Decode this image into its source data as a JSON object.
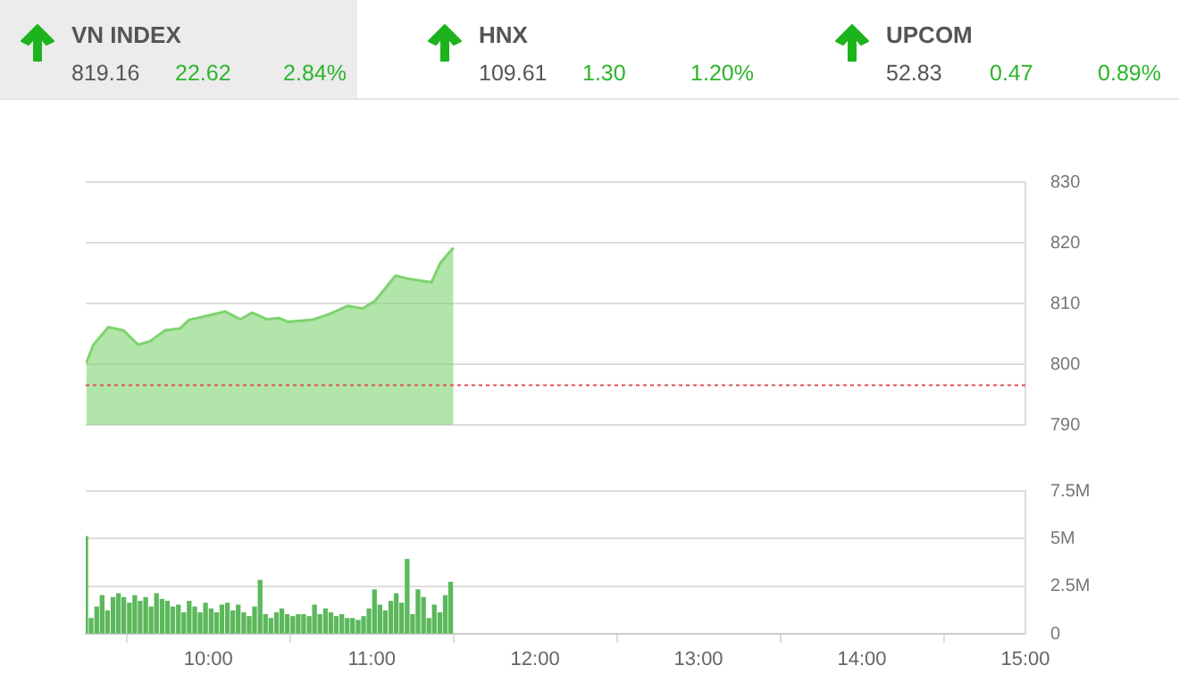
{
  "chart_data": [
    {
      "type": "other",
      "title": "VN INDEX",
      "annotations": [
        "819.16",
        "22.62",
        "2.84%"
      ]
    },
    {
      "type": "other",
      "title": "HNX",
      "annotations": [
        "109.61",
        "1.30",
        "1.20%"
      ]
    },
    {
      "type": "other",
      "title": "UPCOM",
      "annotations": [
        "52.83",
        "0.47",
        "0.89%"
      ]
    },
    {
      "type": "area",
      "x": [
        9.253,
        9.297,
        9.388,
        9.48,
        9.571,
        9.645,
        9.736,
        9.827,
        9.882,
        10.011,
        10.102,
        10.195,
        10.267,
        10.359,
        10.432,
        10.487,
        10.634,
        10.744,
        10.854,
        10.945,
        11.019,
        11.146,
        11.22,
        11.366,
        11.42,
        11.5
      ],
      "values": [
        800.2,
        803.2,
        806.1,
        805.6,
        803.2,
        803.8,
        805.6,
        805.9,
        807.3,
        808.1,
        808.7,
        807.4,
        808.5,
        807.4,
        807.6,
        807,
        807.3,
        808.3,
        809.6,
        809.2,
        810.4,
        814.6,
        814.1,
        813.5,
        816.7,
        819.2
      ],
      "color": "#7ed36f",
      "xlim": [
        9.25,
        15
      ],
      "ylim": [
        790,
        830
      ],
      "yticks": [
        790,
        800,
        810,
        820,
        830
      ],
      "grid": "y",
      "tick_labels": "y",
      "legend": false,
      "ref_lines": [
        {
          "axis": "y",
          "value": 796.54,
          "color": "#e05050",
          "line_style": "dotted"
        }
      ]
    },
    {
      "type": "bar",
      "x": [
        9.25,
        9.283,
        9.317,
        9.35,
        9.383,
        9.417,
        9.45,
        9.483,
        9.517,
        9.55,
        9.583,
        9.617,
        9.65,
        9.683,
        9.717,
        9.75,
        9.783,
        9.817,
        9.85,
        9.883,
        9.917,
        9.95,
        9.983,
        10.017,
        10.05,
        10.083,
        10.117,
        10.15,
        10.183,
        10.217,
        10.25,
        10.283,
        10.317,
        10.35,
        10.383,
        10.417,
        10.45,
        10.483,
        10.517,
        10.55,
        10.583,
        10.617,
        10.65,
        10.683,
        10.717,
        10.75,
        10.783,
        10.817,
        10.85,
        10.883,
        10.917,
        10.95,
        10.983,
        11.017,
        11.05,
        11.083,
        11.117,
        11.15,
        11.183,
        11.217,
        11.25,
        11.283,
        11.317,
        11.35,
        11.383,
        11.417,
        11.45,
        11.483
      ],
      "values": [
        5.1,
        0.8,
        1.4,
        2.0,
        1.2,
        1.9,
        2.1,
        1.9,
        1.6,
        2.0,
        1.7,
        1.9,
        1.4,
        2.1,
        1.8,
        1.7,
        1.4,
        1.5,
        1.1,
        1.7,
        1.4,
        1.1,
        1.6,
        1.3,
        1.1,
        1.5,
        1.6,
        1.2,
        1.5,
        1.1,
        0.9,
        1.4,
        2.8,
        1.0,
        0.8,
        1.1,
        1.3,
        1.0,
        0.9,
        1.0,
        1.0,
        0.9,
        1.5,
        1.0,
        1.3,
        1.1,
        0.9,
        1.0,
        0.8,
        0.8,
        0.7,
        0.9,
        1.3,
        2.3,
        1.5,
        1.2,
        1.7,
        2.1,
        1.6,
        3.9,
        1.0,
        2.3,
        1.9,
        0.8,
        1.5,
        1.1,
        2.0,
        2.7
      ],
      "color": "#5cb85c",
      "xlim": [
        9.25,
        15
      ],
      "xticks": [
        {
          "value": 10,
          "label": "10:00"
        },
        {
          "value": 11,
          "label": "11:00"
        },
        {
          "value": 12,
          "label": "12:00"
        },
        {
          "value": 13,
          "label": "13:00"
        },
        {
          "value": 14,
          "label": "14:00"
        },
        {
          "value": 15,
          "label": "15:00"
        }
      ],
      "ylim": [
        0,
        7.5
      ],
      "yticks": [
        0,
        {
          "value": 2.5,
          "label": "2.5M"
        },
        {
          "value": 5,
          "label": "5M"
        },
        {
          "value": 7.5,
          "label": "7.5M"
        }
      ],
      "grid": "y",
      "legend": false
    }
  ]
}
